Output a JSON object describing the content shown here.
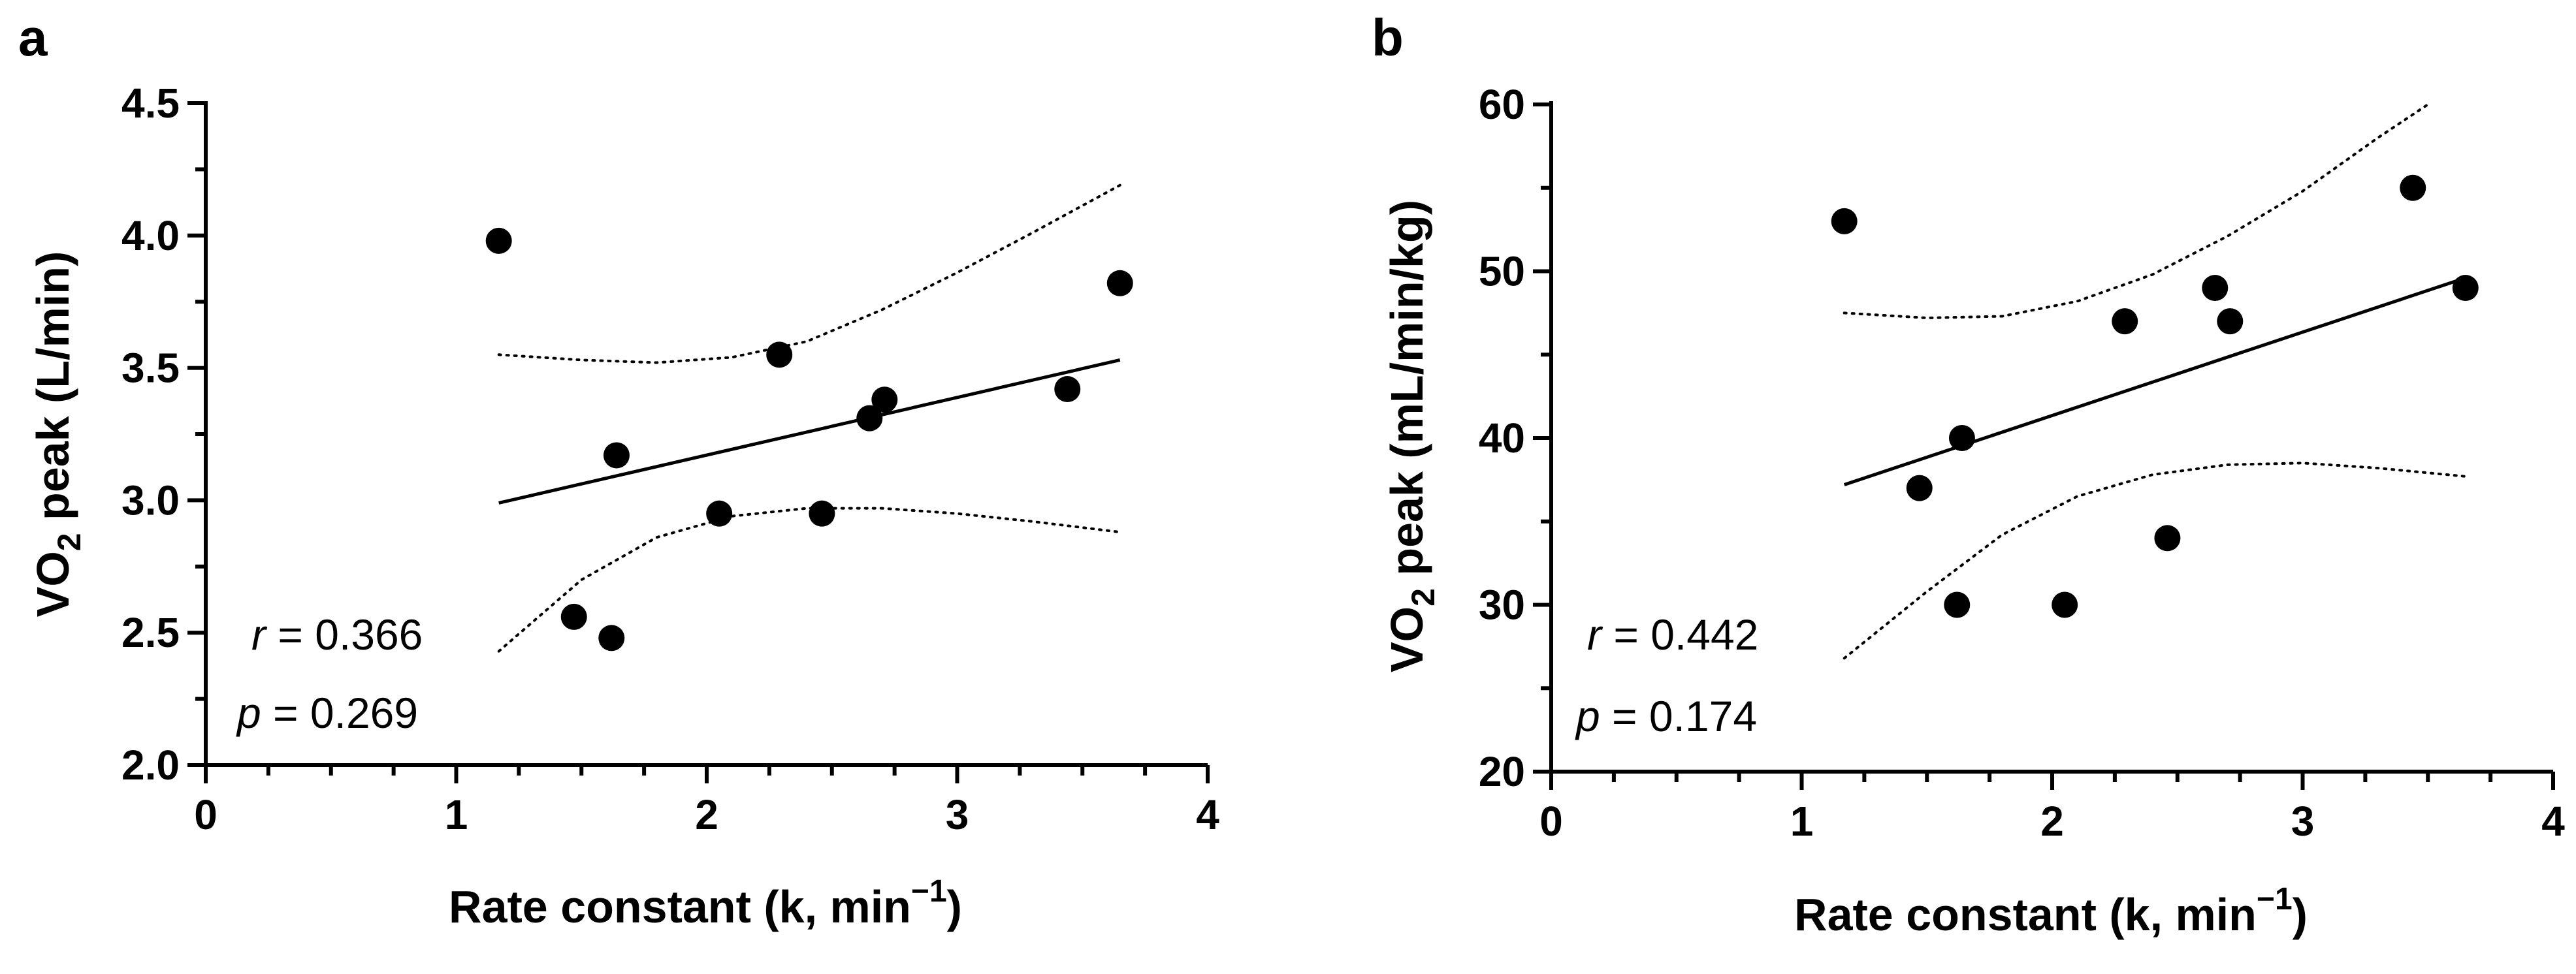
{
  "chart_data": [
    {
      "panel": "a",
      "type": "scatter",
      "xlabel": "Rate constant (k, min",
      "xlabel_sup": "−1",
      "xlabel_end": ")",
      "ylabel_pre": "VO",
      "ylabel_sub": "2",
      "ylabel_post": " peak (L/min)",
      "xlim": [
        0,
        4
      ],
      "ylim": [
        2.0,
        4.5
      ],
      "xticks": [
        0,
        1,
        2,
        3,
        4
      ],
      "xtick_labels": [
        "0",
        "1",
        "2",
        "3",
        "4"
      ],
      "yticks": [
        2.0,
        2.5,
        3.0,
        3.5,
        4.0,
        4.5
      ],
      "ytick_labels": [
        "2.0",
        "2.5",
        "3.0",
        "3.5",
        "4.0",
        "4.5"
      ],
      "points": [
        {
          "x": 1.17,
          "y": 3.98
        },
        {
          "x": 1.47,
          "y": 2.56
        },
        {
          "x": 1.62,
          "y": 2.48
        },
        {
          "x": 1.64,
          "y": 3.17
        },
        {
          "x": 2.05,
          "y": 2.95
        },
        {
          "x": 2.29,
          "y": 3.55
        },
        {
          "x": 2.46,
          "y": 2.95
        },
        {
          "x": 2.65,
          "y": 3.31
        },
        {
          "x": 2.71,
          "y": 3.38
        },
        {
          "x": 3.44,
          "y": 3.42
        },
        {
          "x": 3.65,
          "y": 3.82
        }
      ],
      "fit": {
        "x": [
          1.17,
          3.65
        ],
        "y": [
          2.99,
          3.53
        ]
      },
      "ci_upper": {
        "x": [
          1.17,
          1.5,
          1.8,
          2.1,
          2.4,
          2.7,
          3.0,
          3.3,
          3.65
        ],
        "y": [
          3.55,
          3.53,
          3.52,
          3.54,
          3.6,
          3.72,
          3.86,
          4.01,
          4.19
        ]
      },
      "ci_lower": {
        "x": [
          1.17,
          1.5,
          1.8,
          2.1,
          2.4,
          2.7,
          3.0,
          3.3,
          3.65
        ],
        "y": [
          2.43,
          2.7,
          2.86,
          2.94,
          2.97,
          2.97,
          2.95,
          2.92,
          2.88
        ]
      },
      "r_symbol": "r",
      "r_text": " = 0.366",
      "p_symbol": "p",
      "p_text": " = 0.269"
    },
    {
      "panel": "b",
      "type": "scatter",
      "xlabel": "Rate constant (k, min",
      "xlabel_sup": "−1",
      "xlabel_end": ")",
      "ylabel_pre": "VO",
      "ylabel_sub": "2",
      "ylabel_post": " peak (mL/min/kg)",
      "xlim": [
        0,
        4
      ],
      "ylim": [
        20,
        60
      ],
      "xticks": [
        0,
        1,
        2,
        3,
        4
      ],
      "xtick_labels": [
        "0",
        "1",
        "2",
        "3",
        "4"
      ],
      "yticks": [
        20,
        30,
        40,
        50,
        60
      ],
      "ytick_labels": [
        "20",
        "30",
        "40",
        "50",
        "60"
      ],
      "points": [
        {
          "x": 1.17,
          "y": 53
        },
        {
          "x": 1.47,
          "y": 37
        },
        {
          "x": 1.62,
          "y": 30
        },
        {
          "x": 1.64,
          "y": 40
        },
        {
          "x": 2.05,
          "y": 30
        },
        {
          "x": 2.29,
          "y": 47
        },
        {
          "x": 2.46,
          "y": 34
        },
        {
          "x": 2.65,
          "y": 49
        },
        {
          "x": 2.71,
          "y": 47
        },
        {
          "x": 3.44,
          "y": 55
        },
        {
          "x": 3.65,
          "y": 49
        }
      ],
      "fit": {
        "x": [
          1.17,
          3.65
        ],
        "y": [
          37.2,
          49.6
        ]
      },
      "ci_upper": {
        "x": [
          1.17,
          1.5,
          1.8,
          2.1,
          2.4,
          2.7,
          3.0,
          3.3,
          3.5
        ],
        "y": [
          47.5,
          47.2,
          47.3,
          48.2,
          49.8,
          52.1,
          54.8,
          58.0,
          60.0
        ]
      },
      "ci_lower": {
        "x": [
          1.17,
          1.5,
          1.8,
          2.1,
          2.4,
          2.7,
          3.0,
          3.3,
          3.65
        ],
        "y": [
          26.8,
          30.8,
          34.2,
          36.5,
          37.8,
          38.4,
          38.5,
          38.2,
          37.7
        ]
      },
      "r_symbol": "r",
      "r_text": " = 0.442",
      "p_symbol": "p",
      "p_text": " = 0.174"
    }
  ]
}
